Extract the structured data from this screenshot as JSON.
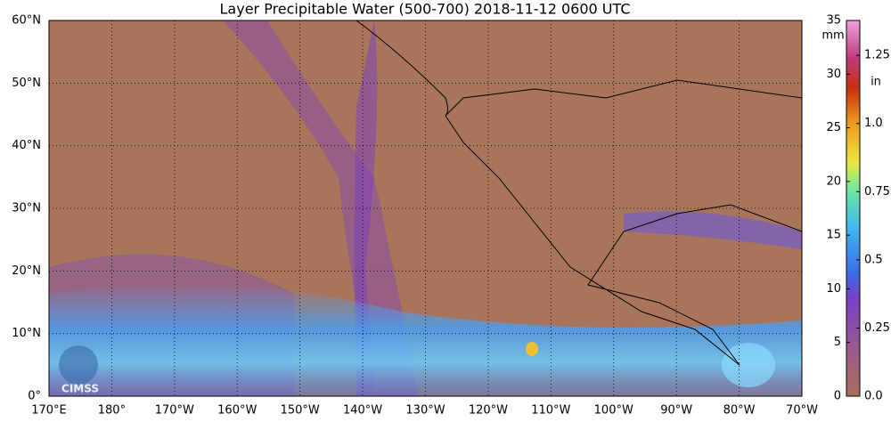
{
  "title": "Layer Precipitable Water (500-700)  2018-11-12 0600 UTC",
  "logo": "CIMSS",
  "map": {
    "lonlim": [
      170,
      290
    ],
    "latlim": [
      0,
      60
    ],
    "lon_ticks": [
      {
        "value": 170,
        "label": "170°E"
      },
      {
        "value": 180,
        "label": "180°"
      },
      {
        "value": 190,
        "label": "170°W"
      },
      {
        "value": 200,
        "label": "160°W"
      },
      {
        "value": 210,
        "label": "150°W"
      },
      {
        "value": 220,
        "label": "140°W"
      },
      {
        "value": 230,
        "label": "130°W"
      },
      {
        "value": 240,
        "label": "120°W"
      },
      {
        "value": 250,
        "label": "110°W"
      },
      {
        "value": 260,
        "label": "100°W"
      },
      {
        "value": 270,
        "label": "90°W"
      },
      {
        "value": 280,
        "label": "80°W"
      },
      {
        "value": 290,
        "label": "70°W"
      }
    ],
    "lat_ticks": [
      {
        "value": 0,
        "label": "0°"
      },
      {
        "value": 10,
        "label": "10°N"
      },
      {
        "value": 20,
        "label": "20°N"
      },
      {
        "value": 30,
        "label": "30°N"
      },
      {
        "value": 40,
        "label": "40°N"
      },
      {
        "value": 50,
        "label": "50°N"
      },
      {
        "value": 60,
        "label": "60°N"
      }
    ]
  },
  "colorbar": {
    "unit_mm": "mm",
    "unit_in": "in",
    "lim": [
      0,
      35
    ],
    "mm_ticks": [
      0,
      5,
      10,
      15,
      20,
      25,
      30,
      35
    ],
    "in_ticks": [
      {
        "value": 0,
        "label": "0.0"
      },
      0.25,
      0.5,
      0.75,
      {
        "value": 1,
        "label": "1.0"
      },
      1.25
    ]
  }
}
